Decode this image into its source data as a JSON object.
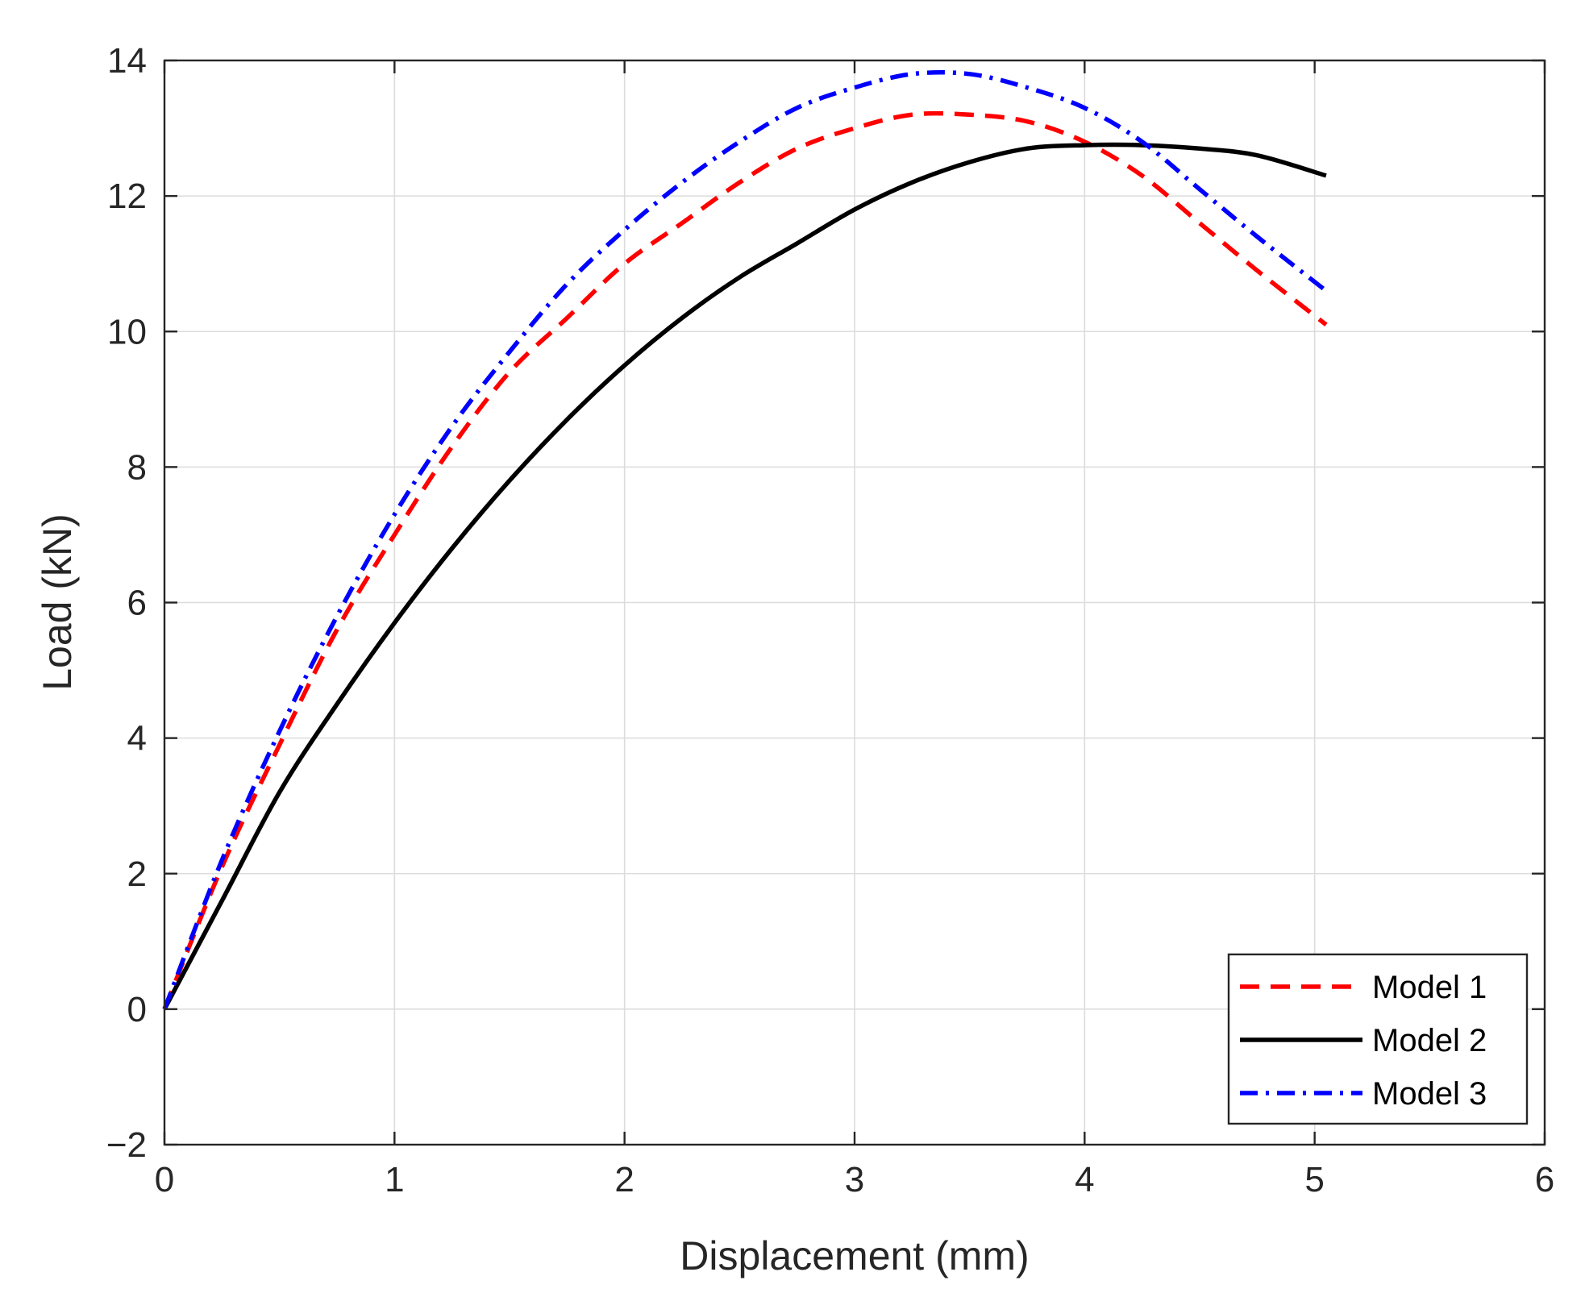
{
  "chart_data": {
    "type": "line",
    "title": "",
    "xlabel": "Displacement (mm)",
    "ylabel": "Load (kN)",
    "xlim": [
      0,
      6
    ],
    "ylim": [
      -2,
      14
    ],
    "xticks": [
      0,
      1,
      2,
      3,
      4,
      5,
      6
    ],
    "yticks": [
      -2,
      0,
      2,
      4,
      6,
      8,
      10,
      12,
      14
    ],
    "x_tick_labels": [
      "0",
      "1",
      "2",
      "3",
      "4",
      "5",
      "6"
    ],
    "y_tick_labels": [
      "−2",
      "0",
      "2",
      "4",
      "6",
      "8",
      "10",
      "12",
      "14"
    ],
    "grid": true,
    "legend_position": "bottom-right",
    "series": [
      {
        "name": "Model 1",
        "color": "#ff0000",
        "style": "dashed",
        "x": [
          0,
          0.25,
          0.5,
          0.75,
          1.0,
          1.25,
          1.5,
          1.75,
          2.0,
          2.25,
          2.5,
          2.75,
          3.0,
          3.25,
          3.5,
          3.75,
          4.0,
          4.25,
          4.5,
          4.75,
          5.05
        ],
        "y": [
          0,
          2.1,
          3.9,
          5.6,
          7.0,
          8.3,
          9.4,
          10.2,
          11.0,
          11.6,
          12.2,
          12.7,
          13.0,
          13.2,
          13.2,
          13.1,
          12.8,
          12.3,
          11.6,
          10.9,
          10.1
        ]
      },
      {
        "name": "Model 2",
        "color": "#000000",
        "style": "solid",
        "x": [
          0,
          0.25,
          0.5,
          0.75,
          1.0,
          1.25,
          1.5,
          1.75,
          2.0,
          2.25,
          2.5,
          2.75,
          3.0,
          3.25,
          3.5,
          3.75,
          4.0,
          4.25,
          4.5,
          4.75,
          5.05
        ],
        "y": [
          0,
          1.6,
          3.2,
          4.5,
          5.7,
          6.8,
          7.8,
          8.7,
          9.5,
          10.2,
          10.8,
          11.3,
          11.8,
          12.2,
          12.5,
          12.7,
          12.75,
          12.75,
          12.7,
          12.6,
          12.3
        ]
      },
      {
        "name": "Model 3",
        "color": "#0000ff",
        "style": "dashdot",
        "x": [
          0,
          0.25,
          0.5,
          0.75,
          1.0,
          1.25,
          1.5,
          1.75,
          2.0,
          2.25,
          2.5,
          2.75,
          3.0,
          3.25,
          3.5,
          3.75,
          4.0,
          4.25,
          4.5,
          4.75,
          5.05
        ],
        "y": [
          0,
          2.2,
          4.1,
          5.8,
          7.3,
          8.6,
          9.7,
          10.7,
          11.5,
          12.2,
          12.8,
          13.3,
          13.6,
          13.8,
          13.8,
          13.6,
          13.3,
          12.8,
          12.1,
          11.4,
          10.6
        ]
      }
    ]
  }
}
